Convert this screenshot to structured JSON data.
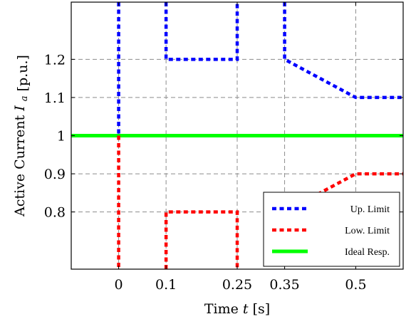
{
  "chart_data": {
    "type": "line",
    "xlabel": "Time",
    "xlabel_var": "t",
    "xlabel_unit": "[s]",
    "ylabel": "Active Current",
    "ylabel_var": "I",
    "ylabel_sub": "a",
    "ylabel_unit": "[p.u.]",
    "xlim": [
      -0.1,
      0.6
    ],
    "ylim": [
      0.65,
      1.35
    ],
    "xticks": [
      0,
      0.1,
      0.25,
      0.35,
      0.5
    ],
    "xtick_labels": [
      "0",
      "0.1",
      "0.25",
      "0.35",
      "0.5"
    ],
    "yticks": [
      0.8,
      0.9,
      1.0,
      1.1,
      1.2
    ],
    "ytick_labels": [
      "0.8",
      "0.9",
      "1",
      "1.1",
      "1.2"
    ],
    "grid": true,
    "legend_position": "bottom-right",
    "series": [
      {
        "name": "Up. Limit",
        "color": "#0000ff",
        "dash": "dashed",
        "segments": [
          [
            [
              0,
              1.35
            ],
            [
              0,
              1.0
            ]
          ],
          [
            [
              0.1,
              1.35
            ],
            [
              0.1,
              1.2
            ],
            [
              0.25,
              1.2
            ],
            [
              0.25,
              1.35
            ]
          ],
          [
            [
              0.35,
              1.35
            ],
            [
              0.35,
              1.2
            ],
            [
              0.5,
              1.1
            ],
            [
              0.6,
              1.1
            ]
          ]
        ]
      },
      {
        "name": "Low. Limit",
        "color": "#ff0000",
        "dash": "dashed",
        "segments": [
          [
            [
              0,
              1.0
            ],
            [
              0,
              0.65
            ]
          ],
          [
            [
              0.1,
              0.65
            ],
            [
              0.1,
              0.8
            ],
            [
              0.25,
              0.8
            ],
            [
              0.25,
              0.65
            ]
          ],
          [
            [
              0.35,
              0.8
            ],
            [
              0.5,
              0.9
            ],
            [
              0.6,
              0.9
            ]
          ]
        ]
      },
      {
        "name": "Ideal Resp.",
        "color": "#00ff00",
        "dash": "solid",
        "segments": [
          [
            [
              -0.1,
              1.0
            ],
            [
              0.6,
              1.0
            ]
          ]
        ]
      }
    ]
  }
}
